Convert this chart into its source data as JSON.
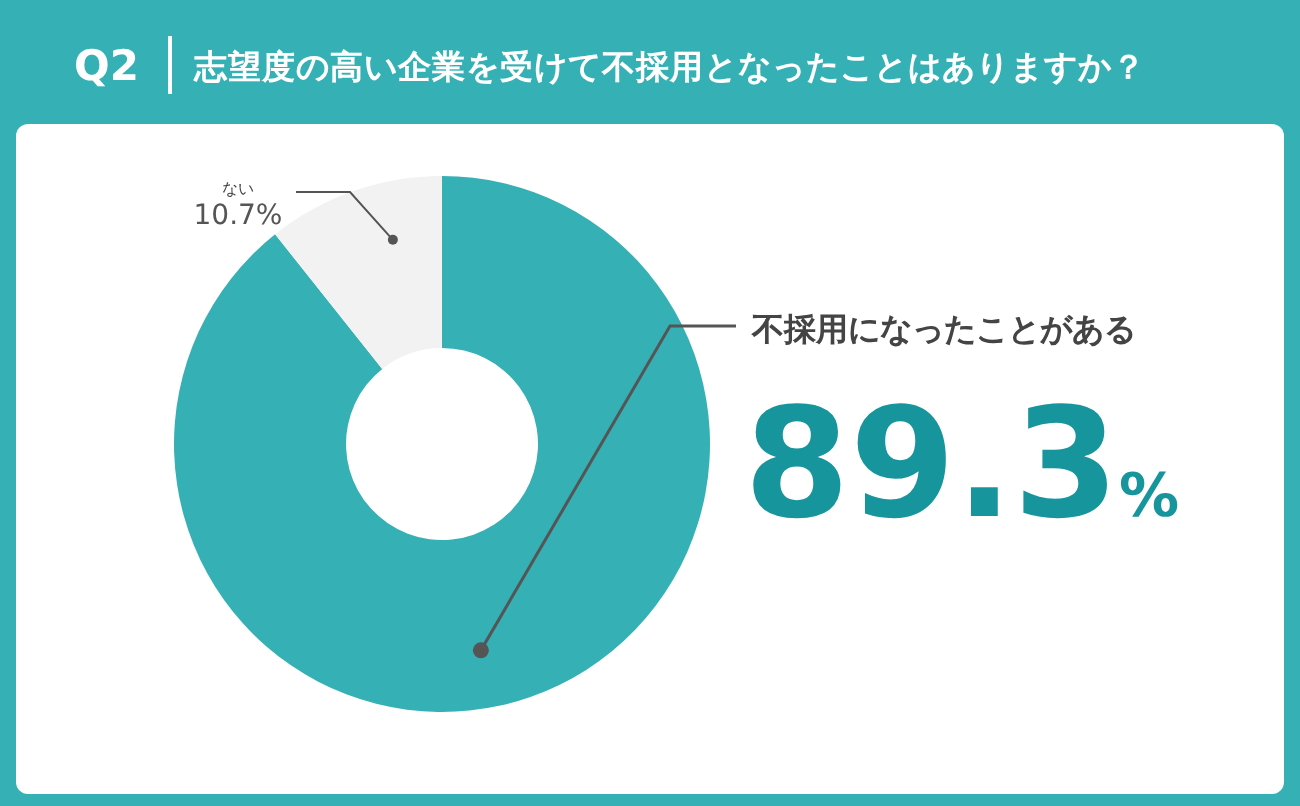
{
  "chart_data": {
    "type": "donut",
    "title": "志望度の高い企業を受けて不採用となったことはありますか？",
    "annotations": [
      "Q2"
    ],
    "categories": [
      "不採用になったことがある",
      "ない"
    ],
    "values": [
      89.3,
      10.7
    ],
    "colors": [
      "#35b0b5",
      "#f2f2f2"
    ],
    "value_labels": [
      "89.3%",
      "10.7%"
    ]
  }
}
